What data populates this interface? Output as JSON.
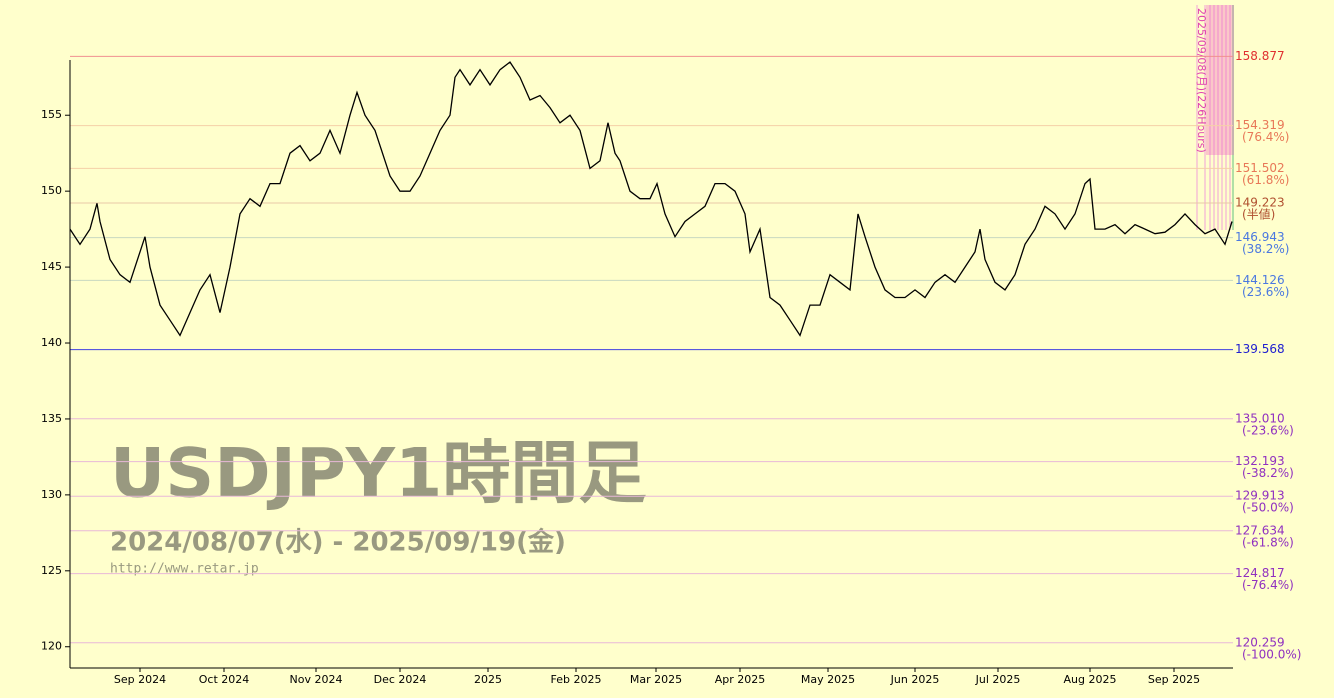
{
  "chart_data": {
    "type": "line",
    "title": "USDJPY1時間足",
    "subtitle": "2024/08/07(水) - 2025/09/19(金)",
    "source": "http://www.retar.jp",
    "annotation": "2025/09/08(月)(226Hours)",
    "color": "#000000",
    "x": [
      0,
      60,
      120,
      162,
      180,
      240,
      300,
      360,
      420,
      450,
      480,
      540,
      600,
      660,
      720,
      780,
      840,
      900,
      960,
      1020,
      1080,
      1140,
      1200,
      1260,
      1320,
      1380,
      1440,
      1500,
      1560,
      1620,
      1680,
      1722,
      1770,
      1830,
      1890,
      1920,
      1980,
      2040,
      2100,
      2160,
      2220,
      2280,
      2310,
      2340,
      2400,
      2460,
      2520,
      2580,
      2640,
      2700,
      2760,
      2820,
      2880,
      2940,
      3000,
      3060,
      3120,
      3180,
      3228,
      3270,
      3300,
      3360,
      3420,
      3480,
      3522,
      3570,
      3630,
      3690,
      3750,
      3810,
      3870,
      3930,
      3990,
      4050,
      4080,
      4140,
      4200,
      4260,
      4320,
      4380,
      4440,
      4500,
      4560,
      4620,
      4680,
      4728,
      4770,
      4830,
      4890,
      4950,
      5010,
      5070,
      5130,
      5190,
      5250,
      5310,
      5370,
      5430,
      5460,
      5490,
      5550,
      5610,
      5670,
      5730,
      5790,
      5850,
      5910,
      5970,
      6030,
      6090,
      6120,
      6150,
      6210,
      6270,
      6330,
      6390,
      6450,
      6510,
      6570,
      6630,
      6690,
      6750,
      6810,
      6870,
      6930,
      6972
    ],
    "values": [
      147.5,
      146.5,
      147.5,
      149.2,
      148,
      145.5,
      144.5,
      144,
      146,
      147,
      145,
      142.5,
      141.5,
      140.5,
      142,
      143.5,
      144.5,
      142,
      145,
      148.5,
      149.5,
      149,
      150.5,
      150.5,
      152.5,
      153,
      152,
      152.5,
      154,
      152.5,
      155,
      156.5,
      155,
      154,
      152,
      151,
      150,
      150,
      151,
      152.5,
      154,
      155,
      157.5,
      158,
      157,
      158,
      157,
      158,
      158.5,
      157.5,
      156,
      156.3,
      155.5,
      154.5,
      155,
      154,
      151.5,
      152,
      154.5,
      152.5,
      152,
      150,
      149.5,
      149.5,
      150.5,
      148.5,
      147,
      148,
      148.5,
      149,
      150.5,
      150.5,
      150,
      148.5,
      146,
      147.5,
      143,
      142.5,
      141.5,
      140.5,
      142.5,
      142.5,
      144.5,
      144,
      143.5,
      148.5,
      147,
      145,
      143.5,
      143,
      143,
      143.5,
      143,
      144,
      144.5,
      144,
      145,
      146,
      147.5,
      145.5,
      144,
      143.5,
      144.5,
      146.5,
      147.5,
      149,
      148.5,
      147.5,
      148.5,
      150.5,
      150.8,
      147.5,
      147.5,
      147.8,
      147.2,
      147.8,
      147.5,
      147.2,
      147.3,
      147.8,
      148.5,
      147.8,
      147.2,
      147.5,
      146.5,
      148
    ],
    "xlim": [
      0,
      6978
    ],
    "xticks": [
      {
        "value": 420,
        "label": "Sep 2024"
      },
      {
        "value": 924,
        "label": "Oct 2024"
      },
      {
        "value": 1476,
        "label": "Nov 2024"
      },
      {
        "value": 1980,
        "label": "Dec 2024"
      },
      {
        "value": 2508,
        "label": "2025"
      },
      {
        "value": 3036,
        "label": "Feb 2025"
      },
      {
        "value": 3516,
        "label": "Mar 2025"
      },
      {
        "value": 4020,
        "label": "Apr 2025"
      },
      {
        "value": 4548,
        "label": "May 2025"
      },
      {
        "value": 5070,
        "label": "Jun 2025"
      },
      {
        "value": 5568,
        "label": "Jul 2025"
      },
      {
        "value": 6120,
        "label": "Aug 2025"
      },
      {
        "value": 6624,
        "label": "Sep 2025"
      }
    ],
    "ylim": [
      118.6,
      158.9
    ],
    "yticks": [
      120,
      125,
      130,
      135,
      140,
      145,
      150,
      155
    ],
    "levels": [
      {
        "value": 158.877,
        "label": "158.877",
        "color": "#e03030",
        "line": "#f09090"
      },
      {
        "value": 154.319,
        "label": "154.319",
        "ratio": "(76.4%)",
        "color": "#e87858",
        "line": "#f5d0a8"
      },
      {
        "value": 151.502,
        "label": "151.502",
        "ratio": "(61.8%)",
        "color": "#e87858",
        "line": "#f5d0a8"
      },
      {
        "value": 149.223,
        "label": "149.223",
        "ratio": "(半値)",
        "color": "#b05030",
        "line": "#e8c8a8"
      },
      {
        "value": 146.943,
        "label": "146.943",
        "ratio": "(38.2%)",
        "color": "#4a78e0",
        "line": "#c8d8c0"
      },
      {
        "value": 144.126,
        "label": "144.126",
        "ratio": "(23.6%)",
        "color": "#4a78e0",
        "line": "#c8d8c0"
      },
      {
        "value": 139.568,
        "label": "139.568",
        "color": "#2020d0",
        "line": "#4040e0"
      },
      {
        "value": 135.01,
        "label": "135.010",
        "ratio": "(-23.6%)",
        "color": "#9030c0",
        "line": "#e8b8d8"
      },
      {
        "value": 132.193,
        "label": "132.193",
        "ratio": "(-38.2%)",
        "color": "#9030c0",
        "line": "#e8b8d8"
      },
      {
        "value": 129.913,
        "label": "129.913",
        "ratio": "(-50.0%)",
        "color": "#9030c0",
        "line": "#e8b8d8"
      },
      {
        "value": 127.634,
        "label": "127.634",
        "ratio": "(-61.8%)",
        "color": "#9030c0",
        "line": "#e8b8d8"
      },
      {
        "value": 124.817,
        "label": "124.817",
        "ratio": "(-76.4%)",
        "color": "#9030c0",
        "line": "#e8b8d8"
      },
      {
        "value": 120.259,
        "label": "120.259",
        "ratio": "(-100.0%)",
        "color": "#9030c0",
        "line": "#e8b8d8"
      }
    ]
  }
}
